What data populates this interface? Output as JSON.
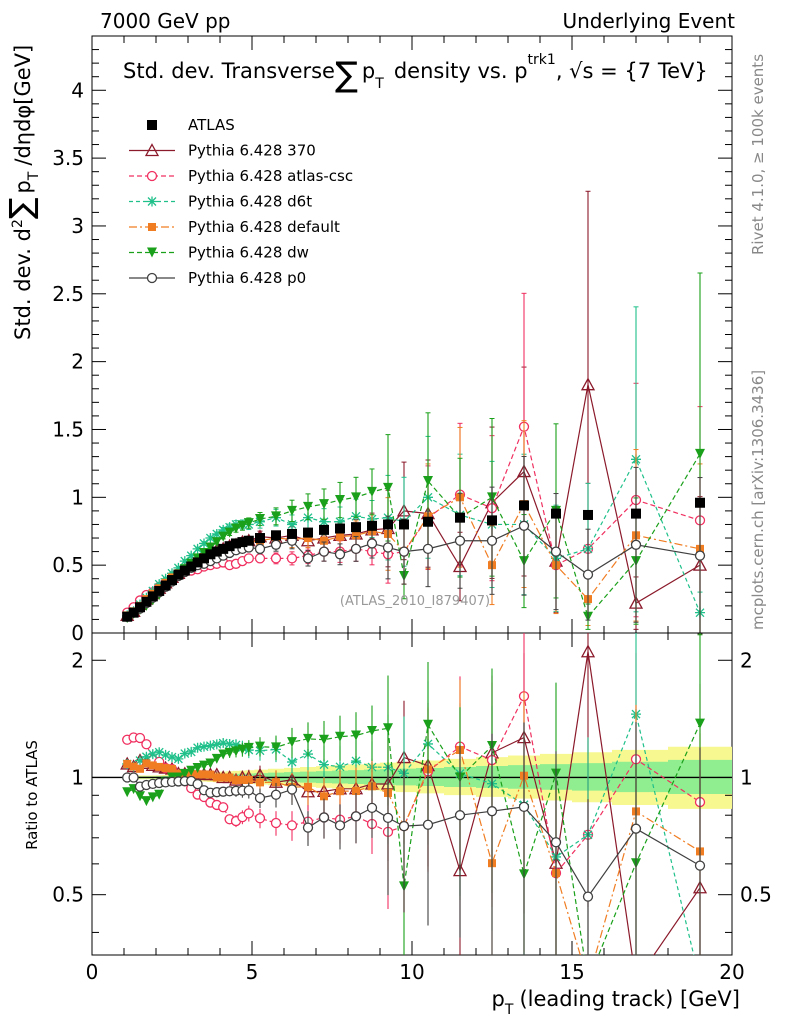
{
  "header": {
    "left": "7000 GeV pp",
    "right": "Underlying Event"
  },
  "side_labels": {
    "top": "Rivet 4.1.0, ≥ 100k events",
    "bottom": "mcplots.cern.ch [arXiv:1306.3436]"
  },
  "chart_data": [
    {
      "type": "line",
      "title": "Std. dev. Transverse ∑ p_T density vs. p_T^trk1, √s = {7 TeV}",
      "ylabel": "Std. dev. d²∑ p_T /dηdφ[GeV]",
      "ylim": [
        0,
        4.4
      ],
      "xlim": [
        0,
        20
      ],
      "yticks": [
        0,
        0.5,
        1,
        1.5,
        2,
        2.5,
        3,
        3.5,
        4
      ],
      "watermark": "(ATLAS_2010_I879407)",
      "x": [
        1.1,
        1.3,
        1.5,
        1.7,
        1.9,
        2.1,
        2.3,
        2.5,
        2.7,
        2.9,
        3.1,
        3.3,
        3.5,
        3.7,
        3.9,
        4.1,
        4.3,
        4.5,
        4.7,
        4.9,
        5.25,
        5.75,
        6.25,
        6.75,
        7.25,
        7.75,
        8.25,
        8.75,
        9.25,
        9.75,
        10.5,
        11.5,
        12.5,
        13.5,
        14.5,
        15.5,
        17,
        19
      ],
      "series": [
        {
          "name": "ATLAS",
          "color": "#000000",
          "marker": "square",
          "dash": "",
          "values": [
            0.12,
            0.15,
            0.19,
            0.23,
            0.27,
            0.31,
            0.35,
            0.39,
            0.43,
            0.46,
            0.49,
            0.52,
            0.55,
            0.58,
            0.6,
            0.62,
            0.64,
            0.66,
            0.67,
            0.68,
            0.7,
            0.72,
            0.73,
            0.74,
            0.76,
            0.77,
            0.78,
            0.79,
            0.8,
            0.8,
            0.82,
            0.85,
            0.83,
            0.94,
            0.88,
            0.87,
            0.88,
            0.96
          ]
        },
        {
          "name": "Pythia 6.428 370",
          "color": "#8b1a2b",
          "marker": "triangle-up-open",
          "dash": "",
          "values": [
            0.13,
            0.16,
            0.21,
            0.25,
            0.29,
            0.33,
            0.37,
            0.41,
            0.44,
            0.47,
            0.5,
            0.53,
            0.56,
            0.59,
            0.61,
            0.62,
            0.64,
            0.65,
            0.67,
            0.68,
            0.71,
            0.7,
            0.72,
            0.68,
            0.7,
            0.72,
            0.73,
            0.76,
            0.77,
            0.9,
            0.88,
            0.49,
            0.96,
            1.19,
            0.53,
            1.83,
            0.22,
            0.5
          ]
        },
        {
          "name": "Pythia 6.428 atlas-csc",
          "color": "#f03060",
          "marker": "circle-open",
          "dash": "5,3",
          "values": [
            0.15,
            0.19,
            0.24,
            0.28,
            0.3,
            0.34,
            0.37,
            0.41,
            0.43,
            0.45,
            0.46,
            0.47,
            0.49,
            0.5,
            0.51,
            0.52,
            0.5,
            0.51,
            0.53,
            0.55,
            0.55,
            0.55,
            0.55,
            0.57,
            0.6,
            0.6,
            0.62,
            0.6,
            0.58,
            0.6,
            0.85,
            1.02,
            0.92,
            1.52,
            0.5,
            0.62,
            0.98,
            0.83
          ]
        },
        {
          "name": "Pythia 6.428 d6t",
          "color": "#1fc08a",
          "marker": "star",
          "dash": "4,3",
          "values": [
            0.13,
            0.16,
            0.21,
            0.26,
            0.31,
            0.36,
            0.4,
            0.44,
            0.48,
            0.53,
            0.57,
            0.62,
            0.66,
            0.7,
            0.73,
            0.76,
            0.78,
            0.8,
            0.8,
            0.8,
            0.82,
            0.85,
            0.8,
            0.85,
            0.82,
            0.82,
            0.86,
            0.84,
            0.85,
            0.82,
            1.0,
            0.87,
            0.8,
            0.8,
            0.55,
            0.62,
            1.28,
            0.15
          ]
        },
        {
          "name": "Pythia 6.428 default",
          "color": "#f07d22",
          "marker": "square-filled",
          "dash": "8,3,2,3",
          "values": [
            0.13,
            0.16,
            0.2,
            0.25,
            0.29,
            0.33,
            0.37,
            0.41,
            0.44,
            0.47,
            0.5,
            0.53,
            0.56,
            0.59,
            0.6,
            0.62,
            0.64,
            0.65,
            0.66,
            0.67,
            0.68,
            0.7,
            0.69,
            0.7,
            0.68,
            0.71,
            0.72,
            0.75,
            0.73,
            0.6,
            0.86,
            1.0,
            0.5,
            0.95,
            0.5,
            0.25,
            0.72,
            0.62
          ]
        },
        {
          "name": "Pythia 6.428 dw",
          "color": "#1aa01a",
          "marker": "triangle-down",
          "dash": "5,3",
          "values": [
            0.11,
            0.14,
            0.17,
            0.2,
            0.24,
            0.28,
            0.34,
            0.39,
            0.43,
            0.47,
            0.51,
            0.55,
            0.59,
            0.63,
            0.67,
            0.71,
            0.74,
            0.77,
            0.79,
            0.81,
            0.84,
            0.86,
            0.9,
            0.93,
            0.95,
            0.98,
            1.0,
            1.04,
            1.07,
            0.42,
            1.12,
            0.85,
            1.0,
            0.53,
            0.9,
            0.12,
            0.53,
            1.32
          ]
        },
        {
          "name": "Pythia 6.428 p0",
          "color": "#404040",
          "marker": "circle-open",
          "dash": "",
          "values": [
            0.12,
            0.15,
            0.18,
            0.22,
            0.26,
            0.3,
            0.34,
            0.38,
            0.42,
            0.45,
            0.48,
            0.5,
            0.51,
            0.53,
            0.55,
            0.57,
            0.59,
            0.61,
            0.62,
            0.63,
            0.62,
            0.65,
            0.68,
            0.55,
            0.6,
            0.58,
            0.62,
            0.66,
            0.63,
            0.6,
            0.62,
            0.68,
            0.68,
            0.79,
            0.6,
            0.43,
            0.65,
            0.57
          ]
        }
      ]
    },
    {
      "type": "line",
      "title": "",
      "ylabel": "Ratio to ATLAS",
      "xlabel": "p_T (leading track) [GeV]",
      "ylim": [
        0.35,
        2.35
      ],
      "xlim": [
        0,
        20
      ],
      "yticks": [
        0.5,
        1,
        2
      ],
      "xticks": [
        0,
        5,
        10,
        15,
        20
      ],
      "reference": "ATLAS = 1"
    }
  ]
}
